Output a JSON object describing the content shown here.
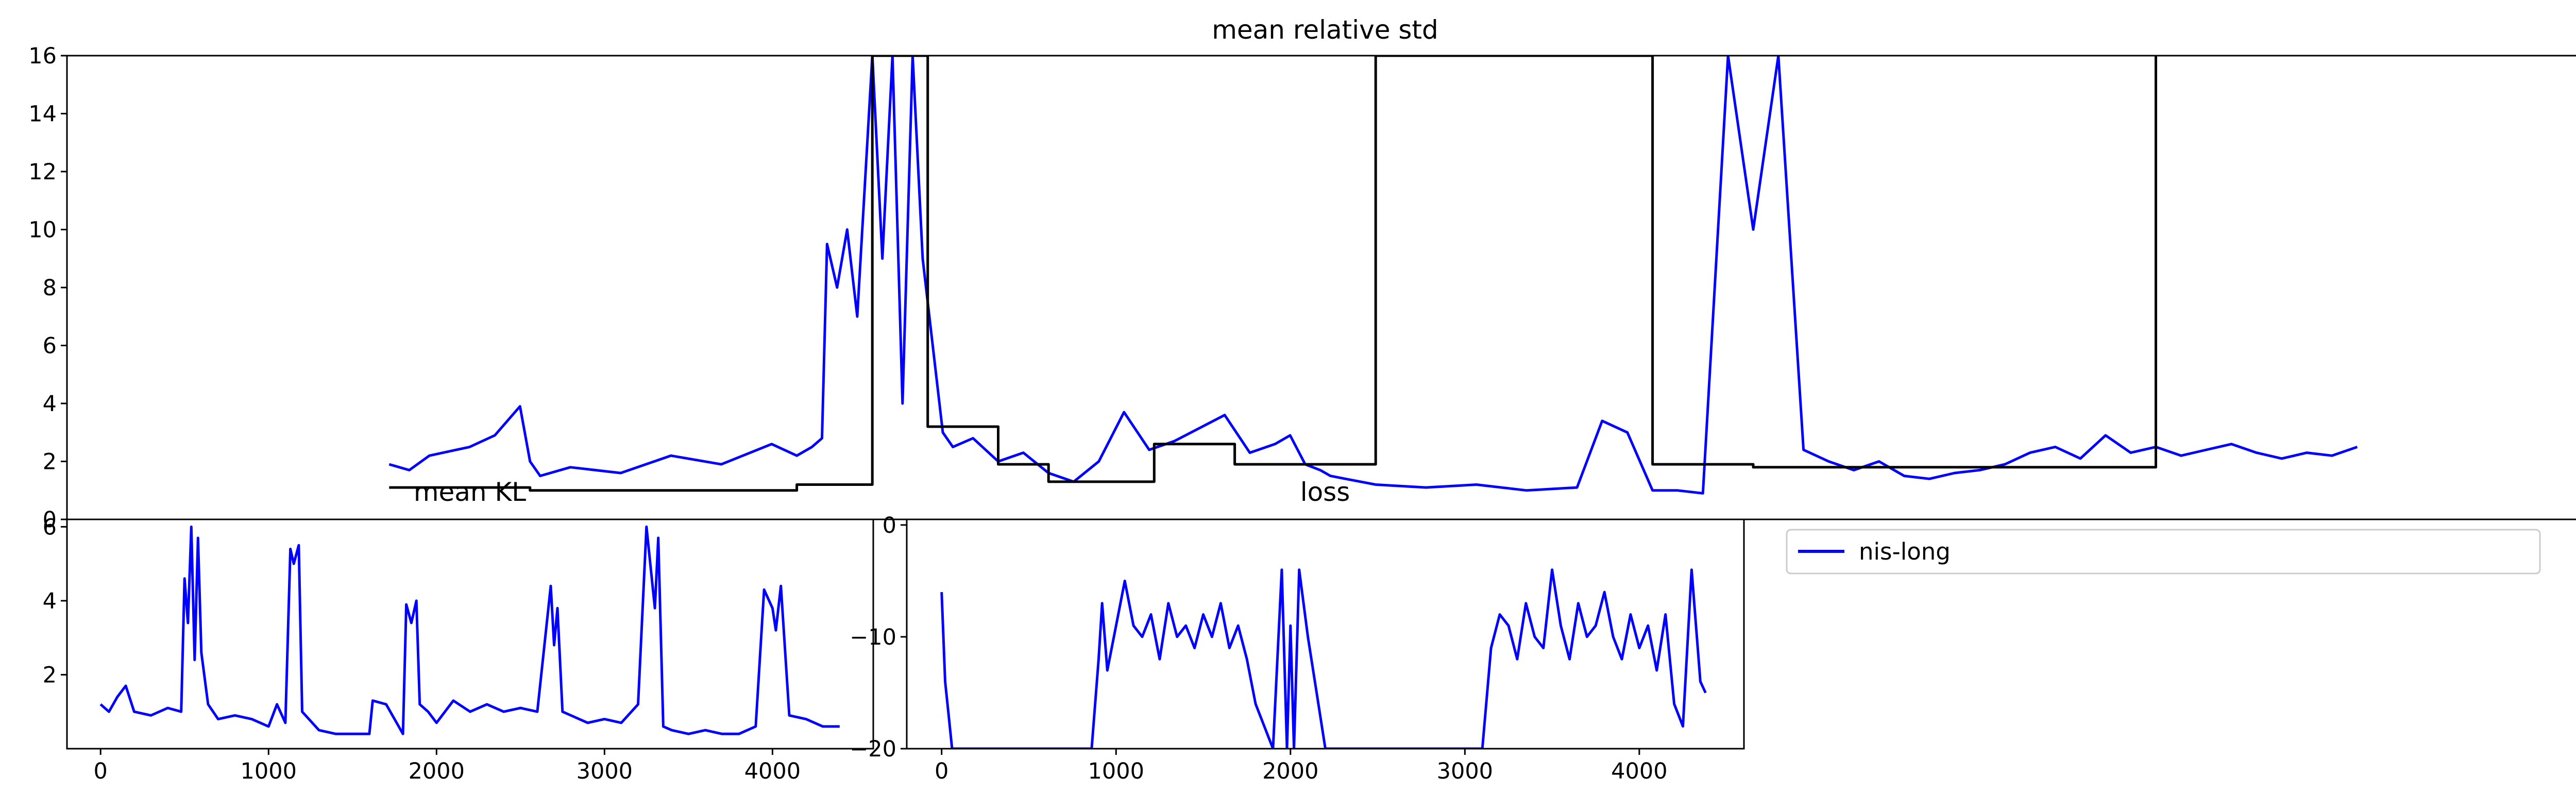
{
  "figure": {
    "background": "#ffffff"
  },
  "chart_data": [
    {
      "type": "line",
      "title": "mean relative std",
      "xlabel": "",
      "ylabel": "",
      "xlim": [
        -200,
        4800
      ],
      "ylim": [
        0,
        16
      ],
      "yticks": [
        0,
        2,
        4,
        6,
        8,
        10,
        12,
        14,
        16
      ],
      "ytick_labels": [
        "0",
        "2",
        "4",
        "6",
        "8",
        "10",
        "12",
        "14",
        "16"
      ],
      "grid": false,
      "series": [
        {
          "color": "#0000ff",
          "x": [
            440,
            480,
            520,
            600,
            650,
            700,
            720,
            740,
            800,
            900,
            1000,
            1100,
            1200,
            1250,
            1280,
            1300,
            1310,
            1330,
            1350,
            1370,
            1400,
            1420,
            1440,
            1460,
            1480,
            1500,
            1520,
            1540,
            1560,
            1600,
            1650,
            1700,
            1750,
            1800,
            1850,
            1900,
            1950,
            2000,
            2100,
            2150,
            2200,
            2230,
            2260,
            2290,
            2310,
            2340,
            2400,
            2500,
            2600,
            2700,
            2800,
            2850,
            2900,
            2950,
            3000,
            3050,
            3100,
            3150,
            3200,
            3250,
            3300,
            3350,
            3400,
            3450,
            3500,
            3550,
            3600,
            3650,
            3700,
            3750,
            3800,
            3850,
            3900,
            3950,
            4000,
            4050,
            4100,
            4150,
            4200,
            4250,
            4300,
            4350
          ],
          "y": [
            1.9,
            1.7,
            2.2,
            2.5,
            2.9,
            3.9,
            2.0,
            1.5,
            1.8,
            1.6,
            2.2,
            1.9,
            2.6,
            2.2,
            2.5,
            2.8,
            9.5,
            8.0,
            10.0,
            7.0,
            16.0,
            9.0,
            16.0,
            4.0,
            16.0,
            9.0,
            6.0,
            3.0,
            2.5,
            2.8,
            2.0,
            2.3,
            1.6,
            1.3,
            2.0,
            3.7,
            2.4,
            2.7,
            3.6,
            2.3,
            2.6,
            2.9,
            1.9,
            1.7,
            1.5,
            1.4,
            1.2,
            1.1,
            1.2,
            1.0,
            1.1,
            3.4,
            3.0,
            1.0,
            1.0,
            0.9,
            16.0,
            10.0,
            16.0,
            2.4,
            2.0,
            1.7,
            2.0,
            1.5,
            1.4,
            1.6,
            1.7,
            1.9,
            2.3,
            2.5,
            2.1,
            2.9,
            2.3,
            2.5,
            2.2,
            2.4,
            2.6,
            2.3,
            2.1,
            2.3,
            2.2,
            2.5
          ]
        },
        {
          "color": "#000000",
          "x": [
            440,
            720,
            720,
            1250,
            1250,
            1400,
            1400,
            1510,
            1510,
            1650,
            1650,
            1750,
            1750,
            1960,
            1960,
            2120,
            2120,
            2400,
            2400,
            2950,
            2950,
            3150,
            3150,
            3950,
            3950
          ],
          "y": [
            1.1,
            1.1,
            1.0,
            1.0,
            1.2,
            1.2,
            16.0,
            16.0,
            3.2,
            3.2,
            1.9,
            1.9,
            1.3,
            1.3,
            2.6,
            2.6,
            1.9,
            1.9,
            16.0,
            16.0,
            1.9,
            1.9,
            1.8,
            1.8,
            16.0
          ]
        }
      ]
    },
    {
      "type": "line",
      "title": "mean KL",
      "xlabel": "",
      "ylabel": "",
      "xlim": [
        -200,
        4600
      ],
      "ylim": [
        0,
        6.2
      ],
      "yticks": [
        2,
        4,
        6
      ],
      "ytick_labels": [
        "2",
        "4",
        "6"
      ],
      "xticks": [
        0,
        1000,
        2000,
        3000,
        4000
      ],
      "xtick_labels": [
        "0",
        "1000",
        "2000",
        "3000",
        "4000"
      ],
      "grid": false,
      "series": [
        {
          "color": "#0000ff",
          "x": [
            0,
            50,
            100,
            150,
            200,
            300,
            400,
            480,
            500,
            520,
            540,
            560,
            580,
            600,
            640,
            700,
            800,
            900,
            1000,
            1050,
            1100,
            1130,
            1150,
            1180,
            1200,
            1300,
            1400,
            1500,
            1600,
            1620,
            1700,
            1800,
            1820,
            1850,
            1880,
            1900,
            1950,
            2000,
            2100,
            2200,
            2300,
            2400,
            2500,
            2600,
            2680,
            2700,
            2720,
            2750,
            2800,
            2900,
            3000,
            3100,
            3200,
            3250,
            3300,
            3320,
            3350,
            3400,
            3500,
            3600,
            3700,
            3800,
            3900,
            3950,
            4000,
            4020,
            4050,
            4100,
            4200,
            4300,
            4400
          ],
          "y": [
            1.2,
            1.0,
            1.4,
            1.7,
            1.0,
            0.9,
            1.1,
            1.0,
            4.6,
            3.4,
            6.0,
            2.4,
            5.7,
            2.6,
            1.2,
            0.8,
            0.9,
            0.8,
            0.6,
            1.2,
            0.7,
            5.4,
            5.0,
            5.5,
            1.0,
            0.5,
            0.4,
            0.4,
            0.4,
            1.3,
            1.2,
            0.4,
            3.9,
            3.4,
            4.0,
            1.2,
            1.0,
            0.7,
            1.3,
            1.0,
            1.2,
            1.0,
            1.1,
            1.0,
            4.4,
            2.8,
            3.8,
            1.0,
            0.9,
            0.7,
            0.8,
            0.7,
            1.2,
            6.0,
            3.8,
            5.7,
            0.6,
            0.5,
            0.4,
            0.5,
            0.4,
            0.4,
            0.6,
            4.3,
            3.8,
            3.2,
            4.4,
            0.9,
            0.8,
            0.6,
            0.6
          ]
        }
      ]
    },
    {
      "type": "line",
      "title": "loss",
      "xlabel": "",
      "ylabel": "",
      "xlim": [
        -200,
        4600
      ],
      "ylim": [
        -20,
        0.5
      ],
      "yticks": [
        0,
        -10,
        -20
      ],
      "ytick_labels": [
        "0",
        "−10",
        "−20"
      ],
      "xticks": [
        0,
        1000,
        2000,
        3000,
        4000
      ],
      "xtick_labels": [
        "0",
        "1000",
        "2000",
        "3000",
        "4000"
      ],
      "grid": false,
      "series": [
        {
          "color": "#0000ff",
          "x": [
            0,
            20,
            40,
            60,
            860,
            900,
            920,
            950,
            1000,
            1050,
            1100,
            1150,
            1200,
            1250,
            1300,
            1350,
            1400,
            1450,
            1500,
            1550,
            1600,
            1650,
            1700,
            1750,
            1800,
            1850,
            1900,
            1950,
            1980,
            2000,
            2020,
            2050,
            2100,
            2150,
            2200,
            3100,
            3150,
            3200,
            3250,
            3300,
            3350,
            3400,
            3450,
            3500,
            3550,
            3600,
            3650,
            3700,
            3750,
            3800,
            3850,
            3900,
            3950,
            4000,
            4050,
            4100,
            4150,
            4200,
            4250,
            4300,
            4350,
            4380
          ],
          "y": [
            -6,
            -14,
            -17,
            -20,
            -20,
            -12,
            -7,
            -13,
            -9,
            -5,
            -9,
            -10,
            -8,
            -12,
            -7,
            -10,
            -9,
            -11,
            -8,
            -10,
            -7,
            -11,
            -9,
            -12,
            -16,
            -18,
            -20,
            -4,
            -20,
            -9,
            -20,
            -4,
            -10,
            -15,
            -20,
            -20,
            -11,
            -8,
            -9,
            -12,
            -7,
            -10,
            -11,
            -4,
            -9,
            -12,
            -7,
            -10,
            -9,
            -6,
            -10,
            -12,
            -8,
            -11,
            -9,
            -13,
            -8,
            -16,
            -18,
            -4,
            -14,
            -15
          ]
        }
      ]
    }
  ],
  "legend": {
    "entries": [
      {
        "label": "nis-long",
        "color": "#0000ff"
      }
    ],
    "placement": "top-left"
  }
}
